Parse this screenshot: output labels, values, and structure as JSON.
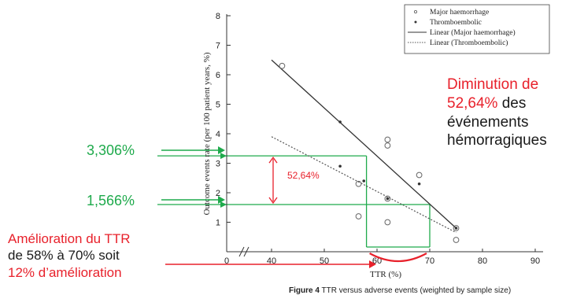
{
  "chart_data": {
    "type": "scatter",
    "xlabel": "TTR (%)",
    "ylabel": "Outcome events rate (per 100 patient years, %)",
    "x_ticks": [
      "0",
      "40",
      "50",
      "60",
      "70",
      "80",
      "90"
    ],
    "y_ticks": [
      "1",
      "2",
      "3",
      "4",
      "5",
      "6",
      "7",
      "8"
    ],
    "xlim": [
      35,
      90
    ],
    "ylim": [
      0,
      8
    ],
    "axis_break": true,
    "legend": {
      "position": "top-right",
      "entries": [
        {
          "label": "Major haemorrhage",
          "marker": "open-circle"
        },
        {
          "label": "Thromboembolic",
          "marker": "dot"
        },
        {
          "label": "Linear (Major haemorrhage)",
          "line": "solid"
        },
        {
          "label": "Linear (Thromboembolic)",
          "line": "dotted"
        }
      ]
    },
    "series": [
      {
        "name": "Major haemorrhage",
        "points": [
          [
            42,
            6.3
          ],
          [
            56.5,
            2.3
          ],
          [
            56.5,
            1.2
          ],
          [
            62,
            3.8
          ],
          [
            62,
            3.6
          ],
          [
            62,
            1.8
          ],
          [
            62,
            1.0
          ],
          [
            68,
            2.6
          ],
          [
            75,
            0.8
          ],
          [
            75,
            0.4
          ]
        ]
      },
      {
        "name": "Thromboembolic",
        "points": [
          [
            53,
            4.4
          ],
          [
            53,
            2.9
          ],
          [
            57.5,
            2.4
          ],
          [
            62,
            1.8
          ],
          [
            68,
            2.3
          ],
          [
            75,
            0.8
          ]
        ]
      }
    ],
    "trendlines": [
      {
        "name": "Linear (Major haemorrhage)",
        "from": [
          40,
          6.5
        ],
        "to": [
          75,
          0.8
        ]
      },
      {
        "name": "Linear (Thromboembolic)",
        "from": [
          40,
          3.9
        ],
        "to": [
          75,
          0.65
        ]
      }
    ],
    "annotations": {
      "level_high": {
        "y": 3.25,
        "x_from": 0,
        "x_to": 58,
        "label": "3,306%"
      },
      "level_low": {
        "y": 1.6,
        "x_from": 0,
        "x_to": 70,
        "label": "1,566%"
      },
      "difference_label": "52,64%",
      "ttr_from": 58,
      "ttr_to": 70
    },
    "colors": {
      "green": "#1faa4c",
      "red": "#e8212b",
      "data": "#444444"
    }
  },
  "annotations": {
    "decrease_line1": "Diminution de",
    "decrease_pct": "52,64%",
    "decrease_word": "des",
    "decrease_line3": "événements",
    "decrease_line4": "hémorragiques",
    "improve_line1": "Amélioration du TTR",
    "improve_line2": "de 58% à 70% soit",
    "improve_line3": "12% d’amélioration",
    "val_high": "3,306%",
    "val_low": "1,566%"
  },
  "caption": {
    "label": "Figure 4",
    "text": "TTR versus adverse events (weighted by sample size)"
  }
}
